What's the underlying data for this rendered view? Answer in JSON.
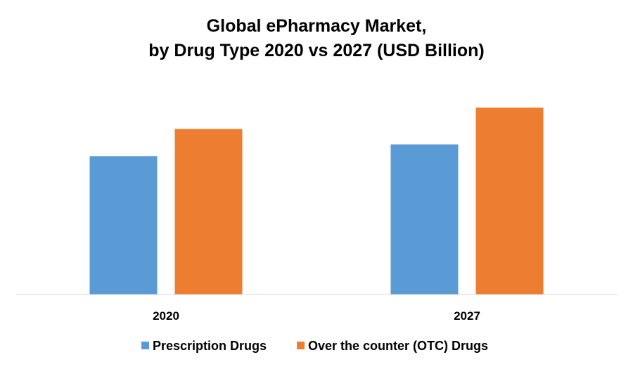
{
  "chart_data": {
    "type": "bar",
    "title_lines": [
      "Global ePharmacy Market,",
      "by Drug Type 2020 vs 2027 (USD Billion)"
    ],
    "categories": [
      "2020",
      "2027"
    ],
    "series": [
      {
        "name": "Prescription Drugs",
        "color": "#5B9BD5",
        "values": [
          18.8,
          20.4
        ]
      },
      {
        "name": "Over the counter (OTC) Drugs",
        "color": "#ED7D31",
        "values": [
          22.5,
          25.4
        ]
      }
    ],
    "xlabel": "",
    "ylabel": "",
    "ylim": [
      0,
      30
    ],
    "grid": false,
    "legend_position": "bottom"
  }
}
